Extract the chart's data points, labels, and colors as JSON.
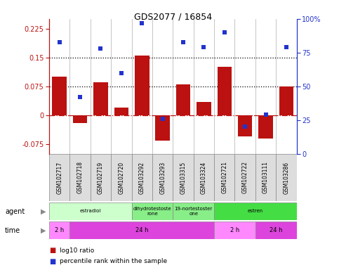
{
  "title": "GDS2077 / 16854",
  "samples": [
    "GSM102717",
    "GSM102718",
    "GSM102719",
    "GSM102720",
    "GSM103292",
    "GSM103293",
    "GSM103315",
    "GSM103324",
    "GSM102721",
    "GSM102722",
    "GSM103111",
    "GSM103286"
  ],
  "log10_ratio": [
    0.1,
    -0.02,
    0.085,
    0.02,
    0.155,
    -0.065,
    0.08,
    0.035,
    0.125,
    -0.055,
    -0.06,
    0.075
  ],
  "percentile": [
    83,
    42,
    78,
    60,
    97,
    26,
    83,
    79,
    90,
    20,
    29,
    79
  ],
  "ylim_left": [
    -0.1,
    0.25
  ],
  "ylim_right": [
    0,
    100
  ],
  "yticks_left": [
    -0.075,
    0,
    0.075,
    0.15,
    0.225
  ],
  "yticks_right": [
    0,
    25,
    50,
    75,
    100
  ],
  "hlines": [
    0.075,
    0.15
  ],
  "bar_color": "#BB1111",
  "dot_color": "#2233CC",
  "bg_color": "#ffffff",
  "agent_groups": [
    {
      "label": "estradiol",
      "start": 0,
      "end": 4,
      "color": "#ccffcc"
    },
    {
      "label": "dihydrotestoste\nrone",
      "start": 4,
      "end": 6,
      "color": "#88ee88"
    },
    {
      "label": "19-nortestoster\none",
      "start": 6,
      "end": 8,
      "color": "#88ee88"
    },
    {
      "label": "estren",
      "start": 8,
      "end": 12,
      "color": "#44dd44"
    }
  ],
  "time_groups": [
    {
      "label": "2 h",
      "start": 0,
      "end": 1,
      "color": "#ff88ff"
    },
    {
      "label": "24 h",
      "start": 1,
      "end": 8,
      "color": "#dd44dd"
    },
    {
      "label": "2 h",
      "start": 8,
      "end": 10,
      "color": "#ff88ff"
    },
    {
      "label": "24 h",
      "start": 10,
      "end": 12,
      "color": "#dd44dd"
    }
  ]
}
